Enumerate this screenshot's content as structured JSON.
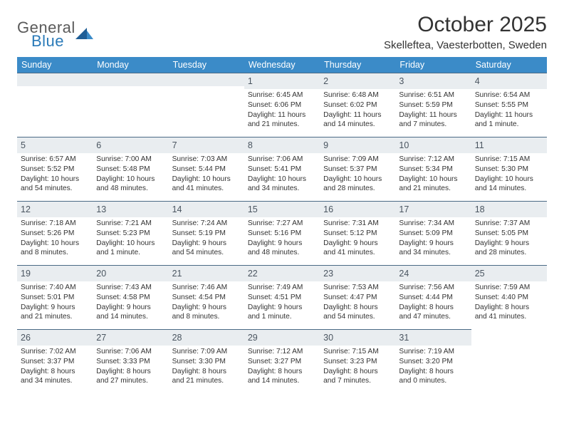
{
  "logo": {
    "line1": "General",
    "line2": "Blue"
  },
  "title": "October 2025",
  "location": "Skelleftea, Vaesterbotten, Sweden",
  "day_headers": [
    "Sunday",
    "Monday",
    "Tuesday",
    "Wednesday",
    "Thursday",
    "Friday",
    "Saturday"
  ],
  "colors": {
    "header_bg": "#3b8bc8",
    "header_text": "#ffffff",
    "date_bg": "#e9edf0",
    "date_border": "#4a6a85",
    "body_text": "#333333",
    "logo_gray": "#5a5a5a",
    "logo_blue": "#2a7ab8",
    "page_bg": "#ffffff"
  },
  "typography": {
    "title_fontsize": 30,
    "location_fontsize": 15,
    "dayhead_fontsize": 12.5,
    "datenum_fontsize": 12.5,
    "info_fontsize": 10.2,
    "font_family": "Arial"
  },
  "weeks": [
    [
      null,
      null,
      null,
      {
        "n": "1",
        "sunrise": "Sunrise: 6:45 AM",
        "sunset": "Sunset: 6:06 PM",
        "daylight1": "Daylight: 11 hours",
        "daylight2": "and 21 minutes."
      },
      {
        "n": "2",
        "sunrise": "Sunrise: 6:48 AM",
        "sunset": "Sunset: 6:02 PM",
        "daylight1": "Daylight: 11 hours",
        "daylight2": "and 14 minutes."
      },
      {
        "n": "3",
        "sunrise": "Sunrise: 6:51 AM",
        "sunset": "Sunset: 5:59 PM",
        "daylight1": "Daylight: 11 hours",
        "daylight2": "and 7 minutes."
      },
      {
        "n": "4",
        "sunrise": "Sunrise: 6:54 AM",
        "sunset": "Sunset: 5:55 PM",
        "daylight1": "Daylight: 11 hours",
        "daylight2": "and 1 minute."
      }
    ],
    [
      {
        "n": "5",
        "sunrise": "Sunrise: 6:57 AM",
        "sunset": "Sunset: 5:52 PM",
        "daylight1": "Daylight: 10 hours",
        "daylight2": "and 54 minutes."
      },
      {
        "n": "6",
        "sunrise": "Sunrise: 7:00 AM",
        "sunset": "Sunset: 5:48 PM",
        "daylight1": "Daylight: 10 hours",
        "daylight2": "and 48 minutes."
      },
      {
        "n": "7",
        "sunrise": "Sunrise: 7:03 AM",
        "sunset": "Sunset: 5:44 PM",
        "daylight1": "Daylight: 10 hours",
        "daylight2": "and 41 minutes."
      },
      {
        "n": "8",
        "sunrise": "Sunrise: 7:06 AM",
        "sunset": "Sunset: 5:41 PM",
        "daylight1": "Daylight: 10 hours",
        "daylight2": "and 34 minutes."
      },
      {
        "n": "9",
        "sunrise": "Sunrise: 7:09 AM",
        "sunset": "Sunset: 5:37 PM",
        "daylight1": "Daylight: 10 hours",
        "daylight2": "and 28 minutes."
      },
      {
        "n": "10",
        "sunrise": "Sunrise: 7:12 AM",
        "sunset": "Sunset: 5:34 PM",
        "daylight1": "Daylight: 10 hours",
        "daylight2": "and 21 minutes."
      },
      {
        "n": "11",
        "sunrise": "Sunrise: 7:15 AM",
        "sunset": "Sunset: 5:30 PM",
        "daylight1": "Daylight: 10 hours",
        "daylight2": "and 14 minutes."
      }
    ],
    [
      {
        "n": "12",
        "sunrise": "Sunrise: 7:18 AM",
        "sunset": "Sunset: 5:26 PM",
        "daylight1": "Daylight: 10 hours",
        "daylight2": "and 8 minutes."
      },
      {
        "n": "13",
        "sunrise": "Sunrise: 7:21 AM",
        "sunset": "Sunset: 5:23 PM",
        "daylight1": "Daylight: 10 hours",
        "daylight2": "and 1 minute."
      },
      {
        "n": "14",
        "sunrise": "Sunrise: 7:24 AM",
        "sunset": "Sunset: 5:19 PM",
        "daylight1": "Daylight: 9 hours",
        "daylight2": "and 54 minutes."
      },
      {
        "n": "15",
        "sunrise": "Sunrise: 7:27 AM",
        "sunset": "Sunset: 5:16 PM",
        "daylight1": "Daylight: 9 hours",
        "daylight2": "and 48 minutes."
      },
      {
        "n": "16",
        "sunrise": "Sunrise: 7:31 AM",
        "sunset": "Sunset: 5:12 PM",
        "daylight1": "Daylight: 9 hours",
        "daylight2": "and 41 minutes."
      },
      {
        "n": "17",
        "sunrise": "Sunrise: 7:34 AM",
        "sunset": "Sunset: 5:09 PM",
        "daylight1": "Daylight: 9 hours",
        "daylight2": "and 34 minutes."
      },
      {
        "n": "18",
        "sunrise": "Sunrise: 7:37 AM",
        "sunset": "Sunset: 5:05 PM",
        "daylight1": "Daylight: 9 hours",
        "daylight2": "and 28 minutes."
      }
    ],
    [
      {
        "n": "19",
        "sunrise": "Sunrise: 7:40 AM",
        "sunset": "Sunset: 5:01 PM",
        "daylight1": "Daylight: 9 hours",
        "daylight2": "and 21 minutes."
      },
      {
        "n": "20",
        "sunrise": "Sunrise: 7:43 AM",
        "sunset": "Sunset: 4:58 PM",
        "daylight1": "Daylight: 9 hours",
        "daylight2": "and 14 minutes."
      },
      {
        "n": "21",
        "sunrise": "Sunrise: 7:46 AM",
        "sunset": "Sunset: 4:54 PM",
        "daylight1": "Daylight: 9 hours",
        "daylight2": "and 8 minutes."
      },
      {
        "n": "22",
        "sunrise": "Sunrise: 7:49 AM",
        "sunset": "Sunset: 4:51 PM",
        "daylight1": "Daylight: 9 hours",
        "daylight2": "and 1 minute."
      },
      {
        "n": "23",
        "sunrise": "Sunrise: 7:53 AM",
        "sunset": "Sunset: 4:47 PM",
        "daylight1": "Daylight: 8 hours",
        "daylight2": "and 54 minutes."
      },
      {
        "n": "24",
        "sunrise": "Sunrise: 7:56 AM",
        "sunset": "Sunset: 4:44 PM",
        "daylight1": "Daylight: 8 hours",
        "daylight2": "and 47 minutes."
      },
      {
        "n": "25",
        "sunrise": "Sunrise: 7:59 AM",
        "sunset": "Sunset: 4:40 PM",
        "daylight1": "Daylight: 8 hours",
        "daylight2": "and 41 minutes."
      }
    ],
    [
      {
        "n": "26",
        "sunrise": "Sunrise: 7:02 AM",
        "sunset": "Sunset: 3:37 PM",
        "daylight1": "Daylight: 8 hours",
        "daylight2": "and 34 minutes."
      },
      {
        "n": "27",
        "sunrise": "Sunrise: 7:06 AM",
        "sunset": "Sunset: 3:33 PM",
        "daylight1": "Daylight: 8 hours",
        "daylight2": "and 27 minutes."
      },
      {
        "n": "28",
        "sunrise": "Sunrise: 7:09 AM",
        "sunset": "Sunset: 3:30 PM",
        "daylight1": "Daylight: 8 hours",
        "daylight2": "and 21 minutes."
      },
      {
        "n": "29",
        "sunrise": "Sunrise: 7:12 AM",
        "sunset": "Sunset: 3:27 PM",
        "daylight1": "Daylight: 8 hours",
        "daylight2": "and 14 minutes."
      },
      {
        "n": "30",
        "sunrise": "Sunrise: 7:15 AM",
        "sunset": "Sunset: 3:23 PM",
        "daylight1": "Daylight: 8 hours",
        "daylight2": "and 7 minutes."
      },
      {
        "n": "31",
        "sunrise": "Sunrise: 7:19 AM",
        "sunset": "Sunset: 3:20 PM",
        "daylight1": "Daylight: 8 hours",
        "daylight2": "and 0 minutes."
      },
      null
    ]
  ]
}
